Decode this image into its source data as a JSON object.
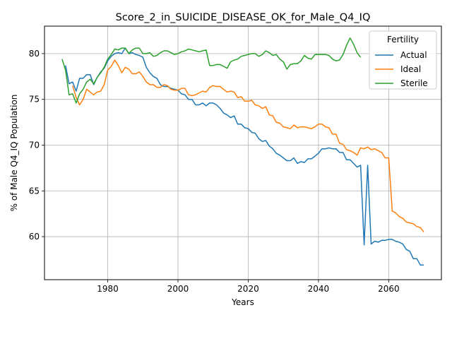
{
  "chart_data": {
    "type": "line",
    "title": "Score_2_in_SUICIDE_DISEASE_OK_for_Male_Q4_IQ",
    "xlabel": "Years",
    "ylabel": "% of Male Q4_IQ Population",
    "xlim": [
      1962,
      2075
    ],
    "ylim": [
      55.3,
      83.0
    ],
    "xticks": [
      1980,
      2000,
      2020,
      2040,
      2060
    ],
    "yticks": [
      60,
      65,
      70,
      75,
      80
    ],
    "grid": true,
    "legend": {
      "title": "Fertility",
      "placement": "top-right"
    },
    "series": [
      {
        "name": "Actual",
        "color": "#1f77b4",
        "x": [
          1968,
          1969,
          1970,
          1971,
          1972,
          1973,
          1974,
          1975,
          1976,
          1977,
          1978,
          1979,
          1980,
          1981,
          1982,
          1983,
          1984,
          1985,
          1986,
          1987,
          1988,
          1989,
          1990,
          1991,
          1992,
          1993,
          1994,
          1995,
          1996,
          1997,
          1998,
          1999,
          2000,
          2001,
          2002,
          2003,
          2004,
          2005,
          2006,
          2007,
          2008,
          2009,
          2010,
          2011,
          2012,
          2013,
          2014,
          2015,
          2016,
          2017,
          2018,
          2019,
          2020,
          2021,
          2022,
          2023,
          2024,
          2025,
          2026,
          2027,
          2028,
          2029,
          2030,
          2031,
          2032,
          2033,
          2034,
          2035,
          2036,
          2037,
          2038,
          2039,
          2040,
          2041,
          2042,
          2043,
          2044,
          2045,
          2046,
          2047,
          2048,
          2049,
          2050,
          2051,
          2052,
          2053,
          2054,
          2055,
          2056,
          2057,
          2058,
          2059,
          2060,
          2061,
          2062,
          2063,
          2064,
          2065,
          2066,
          2067,
          2068,
          2069,
          2070
        ],
        "y": [
          78.7,
          76.7,
          76.9,
          75.9,
          77.3,
          77.3,
          77.7,
          77.7,
          76.6,
          77.4,
          78.0,
          78.4,
          79.2,
          79.7,
          80.0,
          80.1,
          80.0,
          80.6,
          80.0,
          80.1,
          79.9,
          79.8,
          79.6,
          78.5,
          77.9,
          77.5,
          77.3,
          76.6,
          76.4,
          76.4,
          76.2,
          76.1,
          76.0,
          75.6,
          75.5,
          75.0,
          75.0,
          74.4,
          74.4,
          74.6,
          74.3,
          74.6,
          74.6,
          74.4,
          74.0,
          73.5,
          73.3,
          73.0,
          73.2,
          72.3,
          72.3,
          71.9,
          71.8,
          71.4,
          71.3,
          70.7,
          70.4,
          70.5,
          69.9,
          69.6,
          69.1,
          68.9,
          68.6,
          68.3,
          68.3,
          68.6,
          68.0,
          68.2,
          68.1,
          68.5,
          68.5,
          68.8,
          69.1,
          69.6,
          69.6,
          69.7,
          69.6,
          69.6,
          69.2,
          69.2,
          68.4,
          68.4,
          68.0,
          67.6,
          67.8,
          59.1,
          67.8,
          59.2,
          59.5,
          59.4,
          59.6,
          59.6,
          59.7,
          59.7,
          59.5,
          59.4,
          59.2,
          58.6,
          58.4,
          57.6,
          57.6,
          56.9,
          56.9
        ]
      },
      {
        "name": "Ideal",
        "color": "#ff7f0e",
        "x": [
          1970,
          1971,
          1972,
          1973,
          1974,
          1975,
          1976,
          1977,
          1978,
          1979,
          1980,
          1981,
          1982,
          1983,
          1984,
          1985,
          1986,
          1987,
          1988,
          1989,
          1990,
          1991,
          1992,
          1993,
          1994,
          1995,
          1996,
          1997,
          1998,
          1999,
          2000,
          2001,
          2002,
          2003,
          2004,
          2005,
          2006,
          2007,
          2008,
          2009,
          2010,
          2011,
          2012,
          2013,
          2014,
          2015,
          2016,
          2017,
          2018,
          2019,
          2020,
          2021,
          2022,
          2023,
          2024,
          2025,
          2026,
          2027,
          2028,
          2029,
          2030,
          2031,
          2032,
          2033,
          2034,
          2035,
          2036,
          2037,
          2038,
          2039,
          2040,
          2041,
          2042,
          2043,
          2044,
          2045,
          2046,
          2047,
          2048,
          2049,
          2050,
          2051,
          2052,
          2053,
          2054,
          2055,
          2056,
          2057,
          2058,
          2059,
          2060,
          2061,
          2062,
          2063,
          2064,
          2065,
          2066,
          2067,
          2068,
          2069,
          2070
        ],
        "y": [
          76.5,
          75.2,
          74.4,
          75.0,
          76.1,
          75.8,
          75.5,
          75.8,
          75.9,
          76.6,
          78.2,
          78.6,
          79.3,
          78.7,
          77.9,
          78.5,
          78.3,
          77.8,
          77.8,
          78.0,
          77.5,
          76.9,
          76.6,
          76.6,
          76.3,
          76.3,
          76.6,
          76.5,
          76.1,
          76.0,
          76.0,
          76.2,
          76.2,
          75.5,
          75.4,
          75.5,
          75.7,
          75.9,
          75.8,
          76.3,
          76.5,
          76.4,
          76.4,
          76.1,
          75.8,
          75.9,
          75.8,
          75.2,
          75.3,
          74.8,
          74.8,
          74.9,
          74.4,
          74.3,
          74.0,
          74.2,
          73.3,
          73.2,
          72.5,
          72.4,
          72.0,
          71.9,
          71.8,
          72.2,
          71.9,
          72.0,
          72.0,
          71.9,
          71.8,
          72.0,
          72.3,
          72.3,
          72.0,
          71.9,
          71.2,
          71.2,
          70.2,
          70.1,
          69.5,
          69.4,
          69.2,
          68.9,
          69.7,
          69.6,
          69.8,
          69.5,
          69.6,
          69.4,
          69.2,
          68.6,
          68.6,
          62.8,
          62.6,
          62.2,
          62.0,
          61.6,
          61.5,
          61.4,
          61.1,
          61.0,
          60.5
        ]
      },
      {
        "name": "Sterile",
        "color": "#2ca02c",
        "x": [
          1967,
          1968,
          1969,
          1970,
          1971,
          1972,
          1973,
          1974,
          1975,
          1976,
          1977,
          1978,
          1979,
          1980,
          1981,
          1982,
          1983,
          1984,
          1985,
          1986,
          1987,
          1988,
          1989,
          1990,
          1991,
          1992,
          1993,
          1994,
          1995,
          1996,
          1997,
          1998,
          1999,
          2000,
          2001,
          2002,
          2003,
          2004,
          2005,
          2006,
          2007,
          2008,
          2009,
          2010,
          2011,
          2012,
          2013,
          2014,
          2015,
          2016,
          2017,
          2018,
          2019,
          2020,
          2021,
          2022,
          2023,
          2024,
          2025,
          2026,
          2027,
          2028,
          2029,
          2030,
          2031,
          2032,
          2033,
          2034,
          2035,
          2036,
          2037,
          2038,
          2039,
          2040,
          2041,
          2042,
          2043,
          2044,
          2045,
          2046,
          2047,
          2048,
          2049,
          2050,
          2051,
          2052
        ],
        "y": [
          79.4,
          78.2,
          75.5,
          75.6,
          74.6,
          75.6,
          76.1,
          76.9,
          77.2,
          76.7,
          77.4,
          77.9,
          78.5,
          79.4,
          79.9,
          80.5,
          80.4,
          80.6,
          80.6,
          80.0,
          80.4,
          80.6,
          80.6,
          80.0,
          80.0,
          80.1,
          79.7,
          79.8,
          80.1,
          80.3,
          80.3,
          80.1,
          79.9,
          80.0,
          80.2,
          80.3,
          80.5,
          80.4,
          80.3,
          80.2,
          80.3,
          80.4,
          78.7,
          78.7,
          78.8,
          78.8,
          78.6,
          78.4,
          79.1,
          79.3,
          79.4,
          79.7,
          79.8,
          79.9,
          80.0,
          80.0,
          79.7,
          79.9,
          80.3,
          80.1,
          79.8,
          79.9,
          79.4,
          79.1,
          78.3,
          78.8,
          78.9,
          78.9,
          79.2,
          79.8,
          79.5,
          79.4,
          79.9,
          79.9,
          79.9,
          79.9,
          79.8,
          79.4,
          79.2,
          79.3,
          79.9,
          80.9,
          81.7,
          81.0,
          80.1,
          79.6
        ]
      }
    ]
  }
}
